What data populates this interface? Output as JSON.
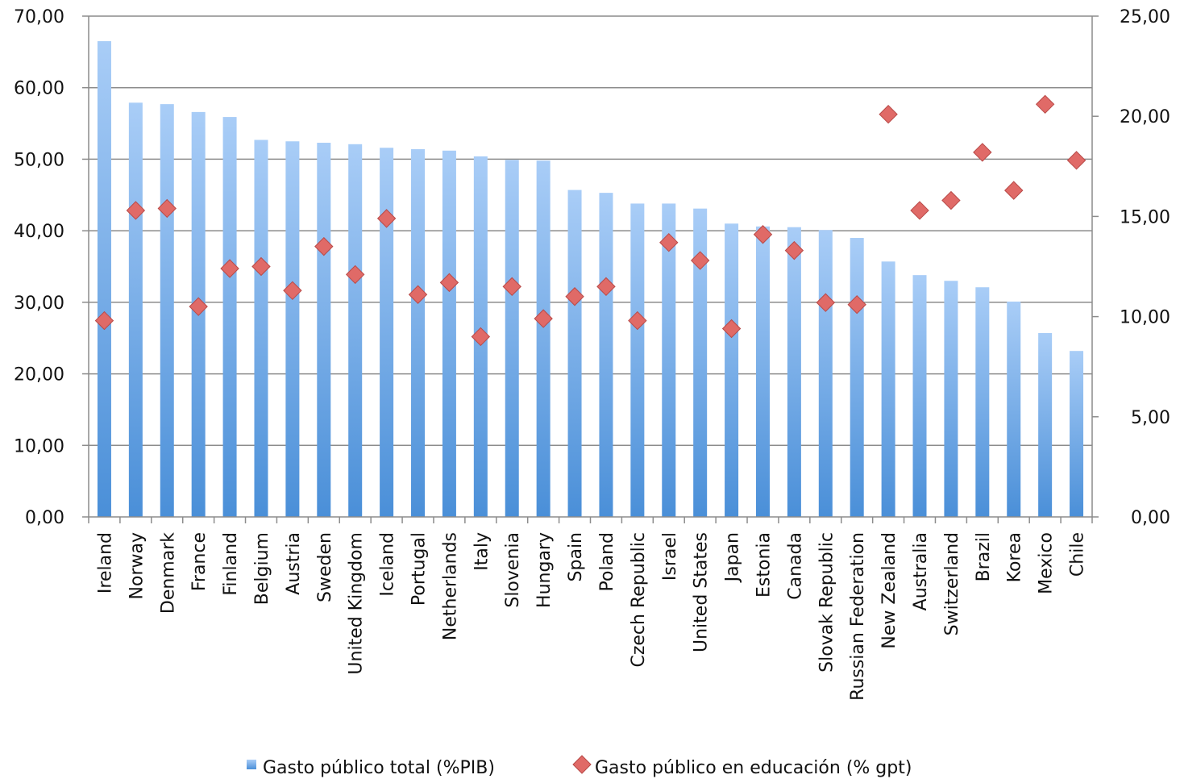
{
  "chart_data": {
    "type": "bar",
    "categories": [
      "Ireland",
      "Norway",
      "Denmark",
      "France",
      "Finland",
      "Belgium",
      "Austria",
      "Sweden",
      "United Kingdom",
      "Iceland",
      "Portugal",
      "Netherlands",
      "Italy",
      "Slovenia",
      "Hungary",
      "Spain",
      "Poland",
      "Czech Republic",
      "Israel",
      "United States",
      "Japan",
      "Estonia",
      "Canada",
      "Slovak Republic",
      "Russian Federation",
      "New Zealand",
      "Australia",
      "Switzerland",
      "Brazil",
      "Korea",
      "Mexico",
      "Chile"
    ],
    "series": [
      {
        "name": "Gasto público total (%PIB)",
        "type": "bar",
        "axis": "left",
        "color": "#5b9bd5",
        "values": [
          66.5,
          57.9,
          57.7,
          56.6,
          55.9,
          52.7,
          52.5,
          52.3,
          52.1,
          51.6,
          51.4,
          51.2,
          50.4,
          49.9,
          49.8,
          45.7,
          45.3,
          43.8,
          43.8,
          43.1,
          41.0,
          40.6,
          40.5,
          40.1,
          39.0,
          35.7,
          33.8,
          33.0,
          32.1,
          30.1,
          25.7,
          23.2
        ]
      },
      {
        "name": "Gasto público en educación (% gpt)",
        "type": "scatter",
        "axis": "right",
        "color": "#e06a67",
        "marker": "diamond",
        "values": [
          9.8,
          15.3,
          15.4,
          10.5,
          12.4,
          12.5,
          11.3,
          13.5,
          12.1,
          14.9,
          11.1,
          11.7,
          9.0,
          11.5,
          9.9,
          11.0,
          11.5,
          9.8,
          13.7,
          12.8,
          9.4,
          14.1,
          13.3,
          10.7,
          10.6,
          20.1,
          15.3,
          15.8,
          18.2,
          16.3,
          20.6,
          17.8
        ]
      }
    ],
    "y_left": {
      "ylim": [
        0,
        70
      ],
      "ticks": [
        "0,00",
        "10,00",
        "20,00",
        "30,00",
        "40,00",
        "50,00",
        "60,00",
        "70,00"
      ]
    },
    "y_right": {
      "ylim": [
        0,
        25
      ],
      "ticks": [
        "0,00",
        "5,00",
        "10,00",
        "15,00",
        "20,00",
        "25,00"
      ]
    },
    "grid": true,
    "legend": {
      "placement": "bottom",
      "items": [
        "Gasto público total (%PIB)",
        "Gasto público en educación (% gpt)"
      ]
    }
  }
}
